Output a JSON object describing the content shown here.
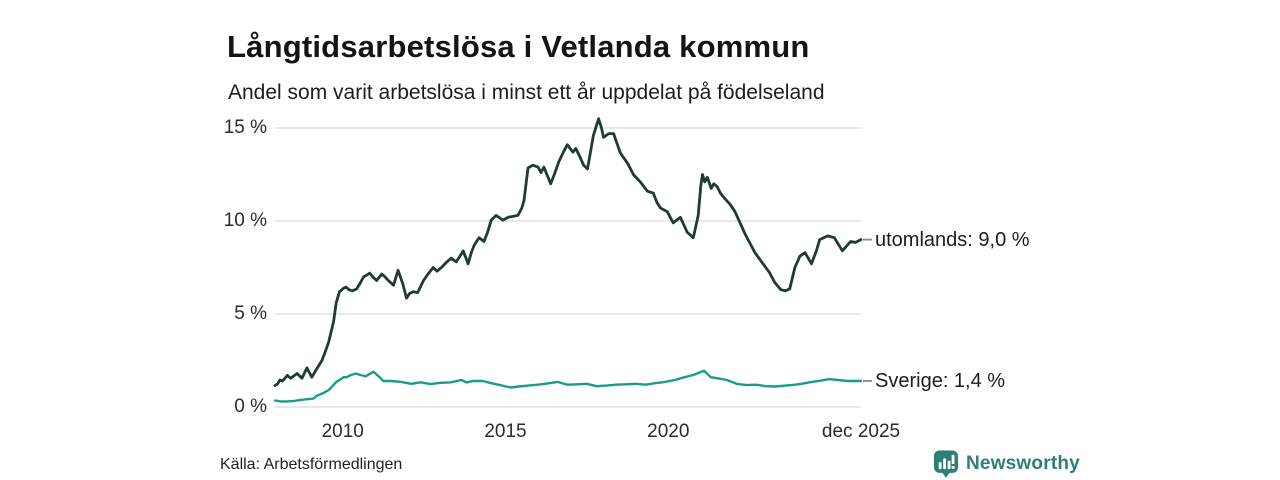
{
  "header": {
    "title": "Långtidsarbetslösa i Vetlanda kommun",
    "subtitle": "Andel som varit arbetslösa i minst ett år uppdelat på födelseland"
  },
  "footer": {
    "source": "Källa: Arbetsförmedlingen",
    "brand": "Newsworthy"
  },
  "colors": {
    "utomlands_line": "#1e3c34",
    "sverige_line": "#1a9c8c",
    "grid": "#dcdcdc",
    "leader_dash": "#8a8a8a",
    "brand_teal": "#2e7f78",
    "text": "#1c1c1c"
  },
  "chart_data": {
    "type": "line",
    "title": "Långtidsarbetslösa i Vetlanda kommun",
    "subtitle": "Andel som varit arbetslösa i minst ett år uppdelat på födelseland",
    "xlabel": "",
    "ylabel": "",
    "x_domain": [
      2007.92,
      2025.92
    ],
    "ylim": [
      0,
      16
    ],
    "grid": "horizontal",
    "legend_position": "right-end-labels",
    "y_ticks": [
      {
        "v": 0,
        "label": "0 %"
      },
      {
        "v": 5,
        "label": "5 %"
      },
      {
        "v": 10,
        "label": "10 %"
      },
      {
        "v": 15,
        "label": "15 %"
      }
    ],
    "x_ticks": [
      {
        "t": 2010,
        "label": "2010"
      },
      {
        "t": 2015,
        "label": "2015"
      },
      {
        "t": 2020,
        "label": "2020"
      },
      {
        "t": 2025.92,
        "label": "dec 2025"
      }
    ],
    "series": [
      {
        "name": "utomlands",
        "label": "utomlands: 9,0 %",
        "end_value": 9.0,
        "color": "#1e3c34",
        "points": [
          [
            2007.92,
            1.15
          ],
          [
            2008.0,
            1.25
          ],
          [
            2008.07,
            1.45
          ],
          [
            2008.15,
            1.4
          ],
          [
            2008.3,
            1.7
          ],
          [
            2008.4,
            1.55
          ],
          [
            2008.6,
            1.8
          ],
          [
            2008.75,
            1.55
          ],
          [
            2008.9,
            2.1
          ],
          [
            2009.05,
            1.6
          ],
          [
            2009.2,
            2.05
          ],
          [
            2009.36,
            2.5
          ],
          [
            2009.45,
            2.9
          ],
          [
            2009.57,
            3.5
          ],
          [
            2009.72,
            4.6
          ],
          [
            2009.8,
            5.6
          ],
          [
            2009.9,
            6.2
          ],
          [
            2010.0,
            6.35
          ],
          [
            2010.1,
            6.45
          ],
          [
            2010.2,
            6.3
          ],
          [
            2010.3,
            6.25
          ],
          [
            2010.43,
            6.35
          ],
          [
            2010.55,
            6.7
          ],
          [
            2010.64,
            7.0
          ],
          [
            2010.75,
            7.1
          ],
          [
            2010.83,
            7.2
          ],
          [
            2010.95,
            6.95
          ],
          [
            2011.04,
            6.8
          ],
          [
            2011.2,
            7.15
          ],
          [
            2011.3,
            7.0
          ],
          [
            2011.4,
            6.8
          ],
          [
            2011.56,
            6.55
          ],
          [
            2011.7,
            7.35
          ],
          [
            2011.85,
            6.6
          ],
          [
            2011.96,
            5.85
          ],
          [
            2012.05,
            6.1
          ],
          [
            2012.17,
            6.2
          ],
          [
            2012.3,
            6.15
          ],
          [
            2012.48,
            6.8
          ],
          [
            2012.6,
            7.1
          ],
          [
            2012.78,
            7.5
          ],
          [
            2012.9,
            7.3
          ],
          [
            2013.03,
            7.5
          ],
          [
            2013.2,
            7.8
          ],
          [
            2013.33,
            8.0
          ],
          [
            2013.49,
            7.8
          ],
          [
            2013.6,
            8.1
          ],
          [
            2013.7,
            8.4
          ],
          [
            2013.85,
            7.7
          ],
          [
            2013.95,
            8.3
          ],
          [
            2014.04,
            8.7
          ],
          [
            2014.19,
            9.1
          ],
          [
            2014.34,
            8.9
          ],
          [
            2014.45,
            9.4
          ],
          [
            2014.56,
            10.05
          ],
          [
            2014.71,
            10.3
          ],
          [
            2014.92,
            10.05
          ],
          [
            2015.08,
            10.2
          ],
          [
            2015.25,
            10.25
          ],
          [
            2015.38,
            10.3
          ],
          [
            2015.5,
            10.7
          ],
          [
            2015.57,
            11.1
          ],
          [
            2015.69,
            12.85
          ],
          [
            2015.84,
            13.0
          ],
          [
            2016.0,
            12.9
          ],
          [
            2016.09,
            12.6
          ],
          [
            2016.18,
            12.9
          ],
          [
            2016.39,
            12.0
          ],
          [
            2016.5,
            12.5
          ],
          [
            2016.64,
            13.2
          ],
          [
            2016.78,
            13.7
          ],
          [
            2016.9,
            14.1
          ],
          [
            2017.07,
            13.7
          ],
          [
            2017.16,
            13.9
          ],
          [
            2017.3,
            13.4
          ],
          [
            2017.4,
            13.0
          ],
          [
            2017.52,
            12.8
          ],
          [
            2017.62,
            13.8
          ],
          [
            2017.7,
            14.6
          ],
          [
            2017.86,
            15.5
          ],
          [
            2017.95,
            15.0
          ],
          [
            2018.01,
            14.5
          ],
          [
            2018.17,
            14.7
          ],
          [
            2018.32,
            14.7
          ],
          [
            2018.42,
            14.2
          ],
          [
            2018.53,
            13.65
          ],
          [
            2018.75,
            13.1
          ],
          [
            2018.93,
            12.5
          ],
          [
            2019.14,
            12.1
          ],
          [
            2019.36,
            11.6
          ],
          [
            2019.54,
            11.5
          ],
          [
            2019.65,
            11.0
          ],
          [
            2019.76,
            10.7
          ],
          [
            2019.97,
            10.5
          ],
          [
            2020.15,
            9.9
          ],
          [
            2020.37,
            10.2
          ],
          [
            2020.58,
            9.4
          ],
          [
            2020.77,
            9.1
          ],
          [
            2020.92,
            10.3
          ],
          [
            2021.0,
            11.9
          ],
          [
            2021.05,
            12.5
          ],
          [
            2021.12,
            12.1
          ],
          [
            2021.2,
            12.35
          ],
          [
            2021.32,
            11.75
          ],
          [
            2021.4,
            12.0
          ],
          [
            2021.5,
            11.85
          ],
          [
            2021.6,
            11.5
          ],
          [
            2021.74,
            11.2
          ],
          [
            2021.9,
            10.9
          ],
          [
            2022.05,
            10.5
          ],
          [
            2022.36,
            9.3
          ],
          [
            2022.66,
            8.3
          ],
          [
            2022.87,
            7.8
          ],
          [
            2023.12,
            7.2
          ],
          [
            2023.27,
            6.7
          ],
          [
            2023.46,
            6.3
          ],
          [
            2023.6,
            6.25
          ],
          [
            2023.73,
            6.35
          ],
          [
            2023.89,
            7.5
          ],
          [
            2024.04,
            8.1
          ],
          [
            2024.2,
            8.3
          ],
          [
            2024.4,
            7.7
          ],
          [
            2024.55,
            8.4
          ],
          [
            2024.65,
            9.0
          ],
          [
            2024.9,
            9.2
          ],
          [
            2025.1,
            9.1
          ],
          [
            2025.35,
            8.4
          ],
          [
            2025.6,
            8.9
          ],
          [
            2025.75,
            8.85
          ],
          [
            2025.92,
            9.0
          ]
        ]
      },
      {
        "name": "Sverige",
        "label": "Sverige: 1,4 %",
        "end_value": 1.4,
        "color": "#1a9c8c",
        "points": [
          [
            2007.92,
            0.35
          ],
          [
            2008.1,
            0.3
          ],
          [
            2008.3,
            0.3
          ],
          [
            2008.5,
            0.32
          ],
          [
            2008.7,
            0.38
          ],
          [
            2008.9,
            0.42
          ],
          [
            2009.1,
            0.45
          ],
          [
            2009.2,
            0.61
          ],
          [
            2009.4,
            0.75
          ],
          [
            2009.57,
            0.91
          ],
          [
            2009.8,
            1.34
          ],
          [
            2010.03,
            1.61
          ],
          [
            2010.12,
            1.6
          ],
          [
            2010.25,
            1.72
          ],
          [
            2010.4,
            1.8
          ],
          [
            2010.55,
            1.72
          ],
          [
            2010.7,
            1.65
          ],
          [
            2010.8,
            1.75
          ],
          [
            2010.95,
            1.9
          ],
          [
            2011.1,
            1.65
          ],
          [
            2011.25,
            1.4
          ],
          [
            2011.5,
            1.4
          ],
          [
            2011.8,
            1.35
          ],
          [
            2012.1,
            1.25
          ],
          [
            2012.4,
            1.33
          ],
          [
            2012.7,
            1.23
          ],
          [
            2013.0,
            1.3
          ],
          [
            2013.3,
            1.32
          ],
          [
            2013.65,
            1.45
          ],
          [
            2013.8,
            1.32
          ],
          [
            2014.0,
            1.4
          ],
          [
            2014.3,
            1.4
          ],
          [
            2014.6,
            1.27
          ],
          [
            2014.9,
            1.15
          ],
          [
            2015.15,
            1.05
          ],
          [
            2015.4,
            1.1
          ],
          [
            2015.7,
            1.15
          ],
          [
            2016.0,
            1.2
          ],
          [
            2016.3,
            1.27
          ],
          [
            2016.6,
            1.35
          ],
          [
            2016.9,
            1.2
          ],
          [
            2017.2,
            1.22
          ],
          [
            2017.5,
            1.25
          ],
          [
            2017.8,
            1.12
          ],
          [
            2018.1,
            1.15
          ],
          [
            2018.4,
            1.2
          ],
          [
            2018.7,
            1.22
          ],
          [
            2019.0,
            1.25
          ],
          [
            2019.3,
            1.2
          ],
          [
            2019.6,
            1.28
          ],
          [
            2019.9,
            1.35
          ],
          [
            2020.2,
            1.45
          ],
          [
            2020.5,
            1.6
          ],
          [
            2020.77,
            1.72
          ],
          [
            2020.95,
            1.85
          ],
          [
            2021.1,
            1.95
          ],
          [
            2021.3,
            1.6
          ],
          [
            2021.5,
            1.55
          ],
          [
            2021.8,
            1.45
          ],
          [
            2022.1,
            1.25
          ],
          [
            2022.4,
            1.18
          ],
          [
            2022.7,
            1.2
          ],
          [
            2023.0,
            1.12
          ],
          [
            2023.3,
            1.1
          ],
          [
            2023.6,
            1.15
          ],
          [
            2023.9,
            1.2
          ],
          [
            2024.1,
            1.25
          ],
          [
            2024.4,
            1.35
          ],
          [
            2024.7,
            1.42
          ],
          [
            2024.95,
            1.5
          ],
          [
            2025.2,
            1.45
          ],
          [
            2025.5,
            1.4
          ],
          [
            2025.92,
            1.4
          ]
        ]
      }
    ]
  }
}
